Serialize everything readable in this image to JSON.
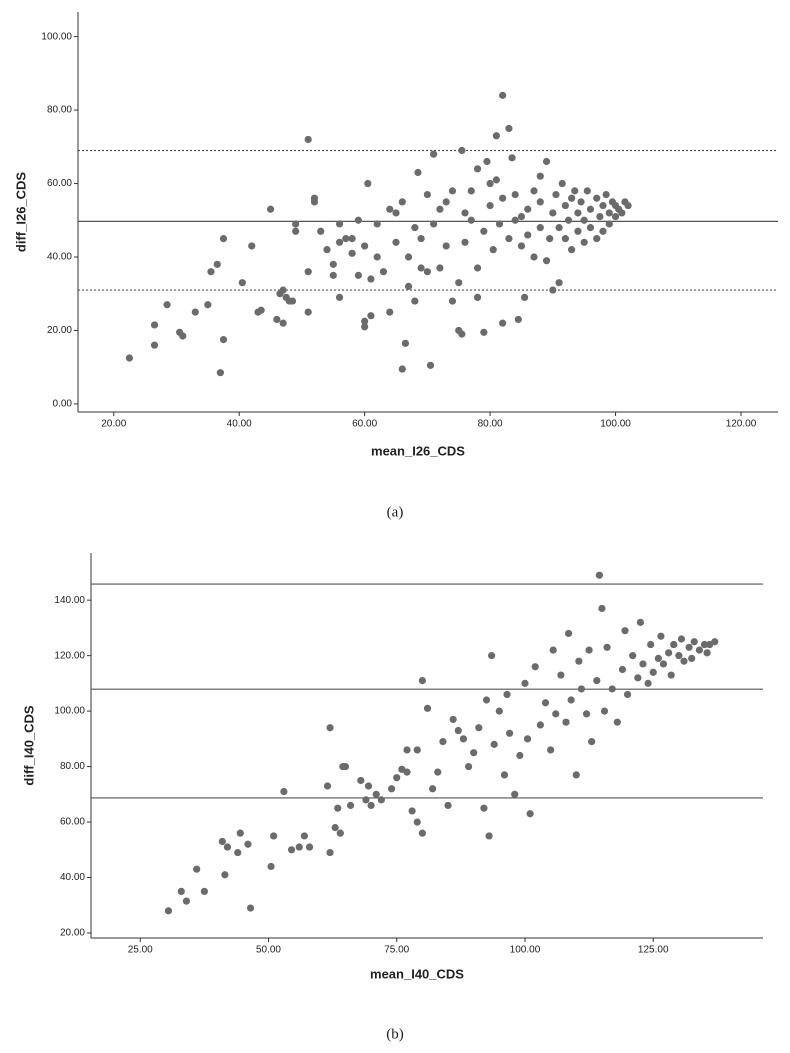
{
  "chart_data": [
    {
      "type": "scatter",
      "x_label": "mean_I26_CDS",
      "y_label": "diff_I26_CDS",
      "caption": "(a)",
      "color": "#6b6b6b",
      "xlim": [
        14.3,
        125.9
      ],
      "ylim": [
        -2.2,
        106.7
      ],
      "xticks": [
        {
          "value": 20,
          "label": "20.00"
        },
        {
          "value": 40,
          "label": "40.00"
        },
        {
          "value": 60,
          "label": "60.00"
        },
        {
          "value": 80,
          "label": "80.00"
        },
        {
          "value": 100,
          "label": "100.00"
        },
        {
          "value": 120,
          "label": "120.00"
        }
      ],
      "yticks": [
        {
          "value": 0,
          "label": "0.00"
        },
        {
          "value": 20,
          "label": "20.00"
        },
        {
          "value": 40,
          "label": "40.00"
        },
        {
          "value": 60,
          "label": "60.00"
        },
        {
          "value": 80,
          "label": "80.00"
        },
        {
          "value": 100,
          "label": "100.00"
        }
      ],
      "hlines": [
        {
          "y": 69.0,
          "dashed": true
        },
        {
          "y": 49.7,
          "dashed": false
        },
        {
          "y": 31.0,
          "dashed": true
        }
      ],
      "x": [
        22.5,
        26.5,
        26.5,
        28.5,
        30.5,
        31,
        33,
        35,
        35.5,
        36.5,
        37,
        37.5,
        37.5,
        40.5,
        42,
        43,
        43.5,
        45,
        46,
        46.5,
        47,
        47,
        47.5,
        48,
        48.5,
        49,
        49,
        51,
        51,
        51,
        52,
        52,
        53,
        54,
        55,
        55,
        56,
        56,
        56,
        57,
        58,
        58,
        59,
        59,
        60,
        60,
        60,
        60.5,
        61,
        61,
        62,
        62,
        63,
        64,
        64,
        65,
        65,
        66,
        66,
        66.5,
        67,
        67,
        68,
        68,
        68.5,
        69,
        69,
        70,
        70,
        70.5,
        71,
        71,
        72,
        72,
        73,
        73,
        74,
        74,
        75,
        75,
        75.5,
        75.5,
        76,
        76,
        77,
        77,
        78,
        78,
        78,
        79,
        79,
        79.5,
        80,
        80,
        80.5,
        81,
        81,
        81.5,
        82,
        82,
        82,
        83,
        83,
        83.5,
        84,
        84,
        84.5,
        85,
        85,
        85.5,
        86,
        86,
        87,
        87,
        88,
        88,
        88,
        89,
        89,
        89.5,
        90,
        90,
        90.5,
        91,
        91,
        91.5,
        92,
        92,
        92.5,
        93,
        93,
        93.5,
        94,
        94,
        94.5,
        95,
        95,
        95.5,
        96,
        96,
        97,
        97,
        97.5,
        98,
        98,
        98.5,
        99,
        99,
        99.5,
        100,
        100,
        100.5,
        101,
        101.5,
        102
      ],
      "y": [
        12.5,
        16,
        21.5,
        27,
        19.5,
        18.5,
        25,
        27,
        36,
        38,
        8.5,
        45,
        17.5,
        33,
        43,
        25,
        25.5,
        53,
        23,
        30,
        31,
        22,
        29,
        28,
        28,
        47,
        49,
        36,
        25,
        72,
        55,
        56,
        47,
        42,
        38,
        35,
        44,
        49,
        29,
        45,
        41,
        45,
        35,
        50,
        22.5,
        21,
        43,
        60,
        24,
        34,
        40,
        49,
        36,
        53,
        25,
        44,
        52,
        9.5,
        55,
        16.5,
        32,
        40,
        48,
        28,
        63,
        37,
        45,
        57,
        36,
        10.5,
        68,
        49,
        37,
        53,
        55,
        43,
        58,
        28,
        33,
        20,
        19,
        69,
        52,
        44,
        50,
        58,
        64,
        37,
        29,
        19.5,
        47,
        66,
        54,
        60,
        42,
        73,
        61,
        49,
        22,
        84,
        56,
        45,
        75,
        67,
        57,
        50,
        23,
        43,
        51,
        29,
        53,
        46,
        58,
        40,
        48,
        55,
        62,
        39,
        66,
        45,
        52,
        31,
        57,
        48,
        33,
        60,
        54,
        45,
        50,
        56,
        42,
        58,
        52,
        47,
        55,
        50,
        44,
        58,
        53,
        48,
        56,
        45,
        51,
        54,
        47,
        57,
        52,
        49,
        55,
        51,
        54,
        53,
        52,
        55,
        54
      ]
    },
    {
      "type": "scatter",
      "x_label": "mean_I40_CDS",
      "y_label": "diff_I40_CDS",
      "caption": "(b)",
      "color": "#6b6b6b",
      "xlim": [
        15.4,
        146.4
      ],
      "ylim": [
        18.2,
        157
      ],
      "xticks": [
        {
          "value": 25,
          "label": "25.00"
        },
        {
          "value": 50,
          "label": "50.00"
        },
        {
          "value": 75,
          "label": "75.00"
        },
        {
          "value": 100,
          "label": "100.00"
        },
        {
          "value": 125,
          "label": "125.00"
        }
      ],
      "yticks": [
        {
          "value": 20,
          "label": "20.00"
        },
        {
          "value": 40,
          "label": "40.00"
        },
        {
          "value": 60,
          "label": "60.00"
        },
        {
          "value": 80,
          "label": "80.00"
        },
        {
          "value": 100,
          "label": "100.00"
        },
        {
          "value": 120,
          "label": "120.00"
        },
        {
          "value": 140,
          "label": "140.00"
        }
      ],
      "hlines": [
        {
          "y": 145.8,
          "dashed": false
        },
        {
          "y": 107.9,
          "dashed": false
        },
        {
          "y": 68.7,
          "dashed": false
        }
      ],
      "x": [
        30.5,
        33,
        34,
        36,
        37.5,
        41,
        41.5,
        42,
        44,
        44.5,
        46,
        46.5,
        50.5,
        51,
        53,
        54.5,
        56,
        57,
        58,
        61.5,
        62,
        62,
        63,
        63.5,
        64,
        64.5,
        65,
        66,
        68,
        69,
        69.5,
        70,
        71,
        72,
        74,
        75,
        76,
        77,
        77,
        78,
        79,
        79,
        80,
        80,
        81,
        82,
        83,
        84,
        85,
        86,
        87,
        88,
        89,
        90,
        91,
        92,
        92.5,
        93,
        93.5,
        94,
        95,
        96,
        96.5,
        97,
        98,
        99,
        100,
        100.5,
        101,
        102,
        103,
        104,
        105,
        105.5,
        106,
        107,
        108,
        108.5,
        109,
        110,
        110.5,
        111,
        112,
        112.5,
        113,
        114,
        114.5,
        115,
        115.5,
        116,
        117,
        118,
        119,
        119.5,
        120,
        121,
        122,
        122.5,
        123,
        124,
        124.5,
        125,
        126,
        126.5,
        127,
        128,
        128.5,
        129,
        130,
        130.5,
        131,
        132,
        132.5,
        133,
        134,
        135,
        135.5,
        136,
        137
      ],
      "y": [
        28,
        35,
        31.5,
        43,
        35,
        53,
        41,
        51,
        49,
        56,
        52,
        29,
        44,
        55,
        71,
        50,
        51,
        55,
        51,
        73,
        94,
        49,
        58,
        65,
        56,
        80,
        80,
        66,
        75,
        68,
        73,
        66,
        70,
        68,
        72,
        76,
        79,
        86,
        78,
        64,
        60,
        86,
        111,
        56,
        101,
        72,
        78,
        89,
        66,
        97,
        93,
        90,
        80,
        85,
        94,
        65,
        104,
        55,
        120,
        88,
        100,
        77,
        106,
        92,
        70,
        84,
        110,
        90,
        63,
        116,
        95,
        103,
        86,
        122,
        99,
        113,
        96,
        128,
        104,
        77,
        118,
        108,
        99,
        122,
        89,
        111,
        149,
        137,
        100,
        123,
        108,
        96,
        115,
        129,
        106,
        120,
        112,
        132,
        117,
        110,
        124,
        114,
        119,
        127,
        117,
        121,
        113,
        124,
        120,
        126,
        118,
        123,
        119,
        125,
        122,
        124,
        121,
        124,
        125
      ]
    }
  ]
}
